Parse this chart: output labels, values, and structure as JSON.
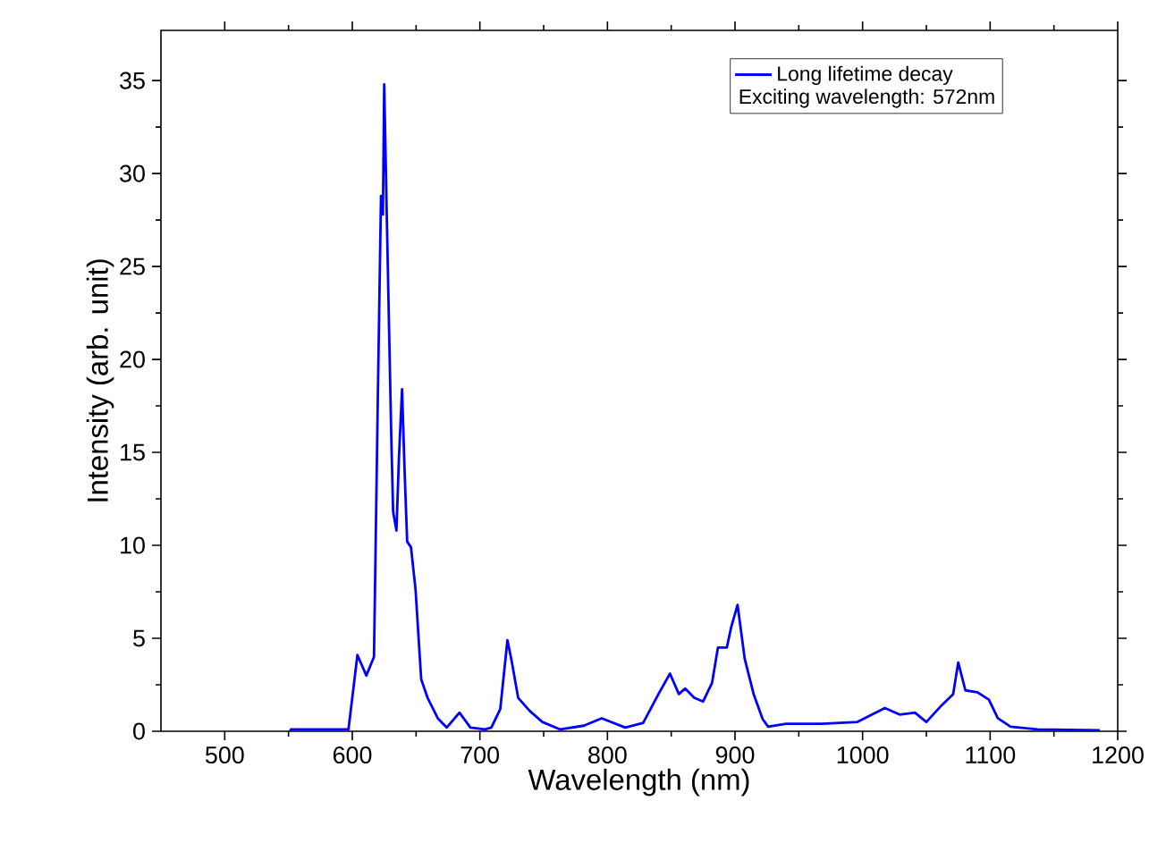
{
  "chart_data": {
    "type": "line",
    "xlabel": "Wavelength (nm)",
    "ylabel": "Intensity (arb. unit)",
    "x": [
      551,
      552,
      597,
      604,
      611,
      617,
      620,
      622.5,
      624,
      625,
      627,
      630.5,
      632,
      634.6,
      636.5,
      639,
      641,
      643,
      646,
      649.6,
      654,
      659,
      667,
      674,
      684,
      692.6,
      704,
      709,
      716,
      721.6,
      725,
      730,
      739,
      749,
      763,
      781.5,
      795.5,
      814,
      828,
      840,
      849,
      856,
      861,
      868,
      875,
      882,
      886.6,
      893.6,
      897,
      902,
      907.6,
      914.6,
      921.7,
      926,
      940,
      968,
      996,
      1017.5,
      1029,
      1041,
      1050,
      1062,
      1071,
      1075,
      1080.6,
      1090,
      1099,
      1106,
      1116,
      1137,
      1186
    ],
    "series": [
      {
        "name": "Long lifetime decay",
        "color": "#0000ff",
        "values": [
          0,
          0.1,
          0.1,
          4.1,
          3.0,
          4.0,
          17.9,
          28.8,
          27.8,
          34.8,
          27.8,
          16,
          11.8,
          10.8,
          14.6,
          18.4,
          14.0,
          10.2,
          9.9,
          7.6,
          2.8,
          1.8,
          0.7,
          0.2,
          1.0,
          0.2,
          0.1,
          0.2,
          1.2,
          4.9,
          3.75,
          1.8,
          1.1,
          0.5,
          0.1,
          0.3,
          0.7,
          0.2,
          0.45,
          2.0,
          3.1,
          2.0,
          2.3,
          1.8,
          1.6,
          2.6,
          4.5,
          4.5,
          5.6,
          6.8,
          3.9,
          2.0,
          0.65,
          0.25,
          0.4,
          0.4,
          0.5,
          1.25,
          0.9,
          1.0,
          0.5,
          1.4,
          2.0,
          3.7,
          2.2,
          2.1,
          1.7,
          0.7,
          0.25,
          0.1,
          0.05
        ]
      }
    ],
    "annotations": [
      "Exciting wavelength: 572nm"
    ],
    "xlim": [
      450,
      1200
    ],
    "ylim": [
      0,
      37.7
    ],
    "xticks": [
      500,
      600,
      700,
      800,
      900,
      1000,
      1100,
      1200
    ],
    "yticks": [
      0,
      5,
      10,
      15,
      20,
      25,
      30,
      35
    ],
    "legend": "top right",
    "grid": false,
    "marker": "none",
    "line_style": "solid"
  }
}
